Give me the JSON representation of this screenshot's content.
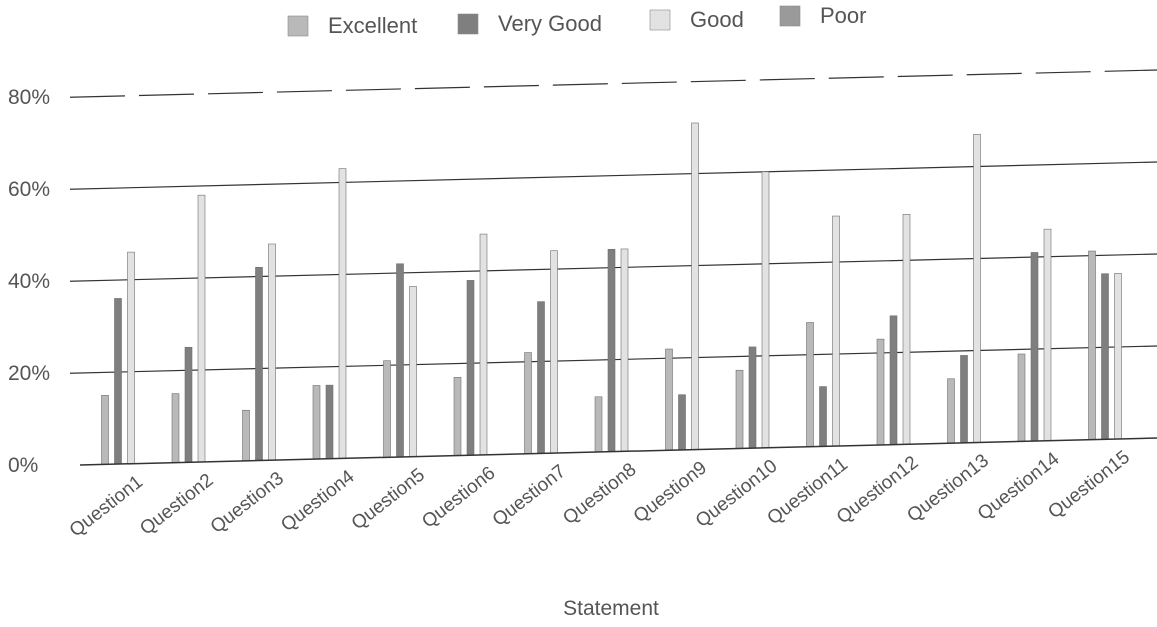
{
  "chart_data": {
    "type": "bar",
    "title": "",
    "xlabel": "Statement",
    "ylabel": "",
    "ylim": [
      0,
      80
    ],
    "y_tick_format": "percent",
    "yticks": [
      0,
      20,
      40,
      60,
      80
    ],
    "ytick_labels": [
      "0%",
      "20%",
      "40%",
      "60%",
      "80%"
    ],
    "grid": true,
    "legend_position": "top-center",
    "categories": [
      "Question1",
      "Question2",
      "Question3",
      "Question4",
      "Question5",
      "Question6",
      "Question7",
      "Question8",
      "Question9",
      "Question10",
      "Question11",
      "Question12",
      "Question13",
      "Question14",
      "Question15"
    ],
    "series": [
      {
        "name": "Excellent",
        "color": "#b9b9b9",
        "values": [
          15,
          15,
          11,
          16,
          21,
          17,
          22,
          12,
          22,
          17,
          27,
          23,
          14,
          19,
          41
        ]
      },
      {
        "name": "Very Good",
        "color": "#7f7f7f",
        "values": [
          36,
          25,
          42,
          16,
          42,
          38,
          33,
          44,
          12,
          22,
          13,
          28,
          19,
          41,
          36
        ]
      },
      {
        "name": "Good",
        "color": "#e2e2e2",
        "values": [
          46,
          58,
          47,
          63,
          37,
          48,
          44,
          44,
          71,
          60,
          50,
          50,
          67,
          46,
          36
        ]
      },
      {
        "name": "Poor",
        "color": "#9a9a9a",
        "values": [
          0,
          0,
          0,
          0,
          0,
          0,
          0,
          0,
          0,
          0,
          0,
          0,
          0,
          0,
          0
        ]
      }
    ]
  }
}
